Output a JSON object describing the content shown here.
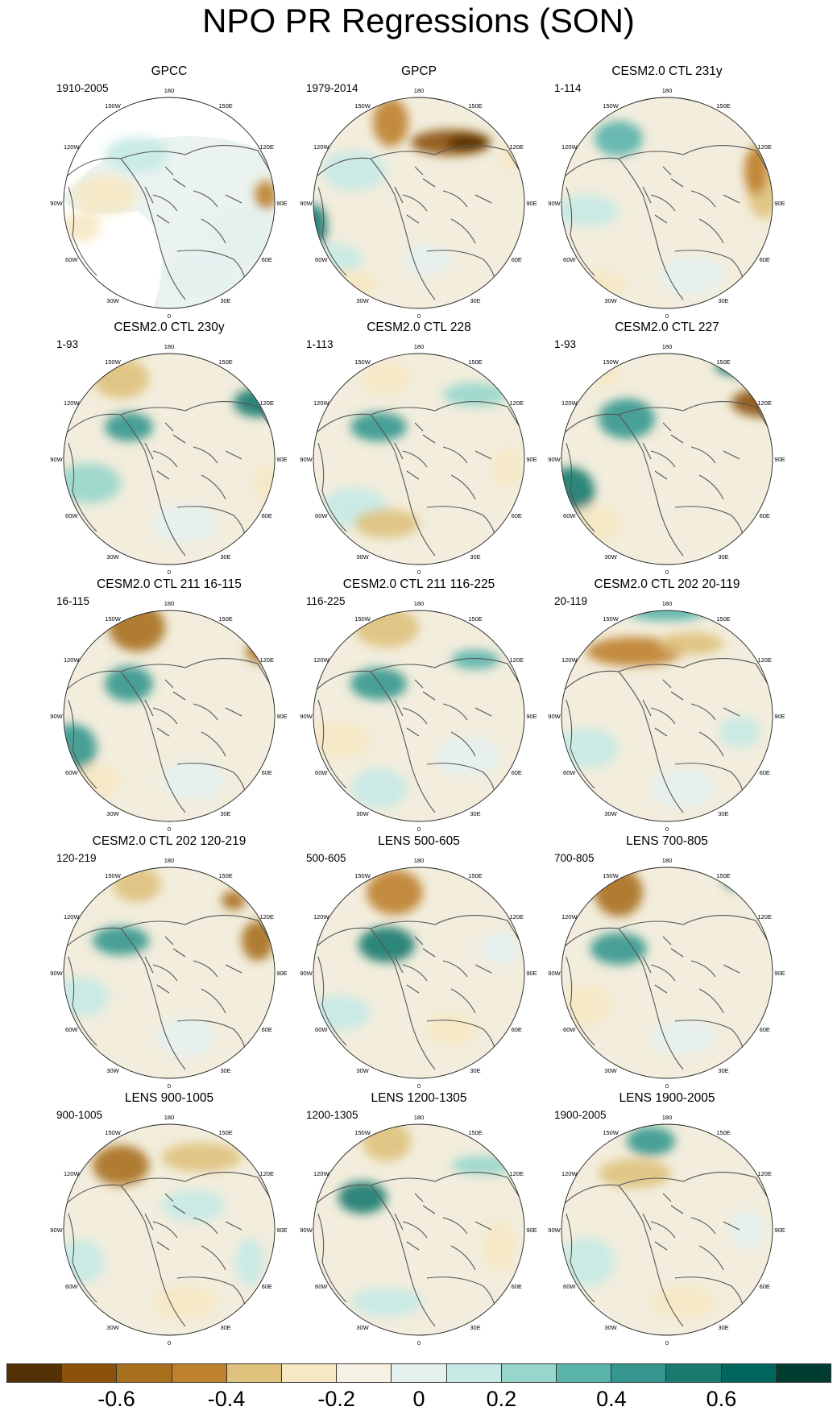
{
  "title": "NPO PR Regressions (SON)",
  "lon_labels": [
    "180",
    "150E",
    "120E",
    "90E",
    "60E",
    "30E",
    "0",
    "30W",
    "60W",
    "90W",
    "120W",
    "150W"
  ],
  "panels": [
    {
      "title": "GPCC",
      "period": "1910-2005"
    },
    {
      "title": "GPCP",
      "period": "1979-2014"
    },
    {
      "title": "CESM2.0 CTL 231y",
      "period": "1-114"
    },
    {
      "title": "CESM2.0 CTL 230y",
      "period": "1-93"
    },
    {
      "title": "CESM2.0 CTL 228",
      "period": "1-113"
    },
    {
      "title": "CESM2.0 CTL 227",
      "period": "1-93"
    },
    {
      "title": "CESM2.0 CTL 211 16-115",
      "period": "16-115"
    },
    {
      "title": "CESM2.0 CTL 211 116-225",
      "period": "116-225"
    },
    {
      "title": "CESM2.0 CTL 202 20-119",
      "period": "20-119"
    },
    {
      "title": "CESM2.0 CTL 202 120-219",
      "period": "120-219"
    },
    {
      "title": "LENS 500-605",
      "period": "500-605"
    },
    {
      "title": "LENS 700-805",
      "period": "700-805"
    },
    {
      "title": "LENS 900-1005",
      "period": "900-1005"
    },
    {
      "title": "LENS 1200-1305",
      "period": "1200-1305"
    },
    {
      "title": "LENS 1900-2005",
      "period": "1900-2005"
    }
  ],
  "colorbar": {
    "colors": [
      "#543005",
      "#8c510a",
      "#a8701d",
      "#bf812d",
      "#dfc27d",
      "#f6e8c3",
      "#f5f2e3",
      "#e4f1ef",
      "#c7eae5",
      "#97d7cb",
      "#5ab4ac",
      "#35978f",
      "#1a7a70",
      "#01665e",
      "#003c30"
    ],
    "labels": [
      "-0.6",
      "-0.4",
      "-0.2",
      "0",
      "0.2",
      "0.4",
      "0.6"
    ]
  }
}
